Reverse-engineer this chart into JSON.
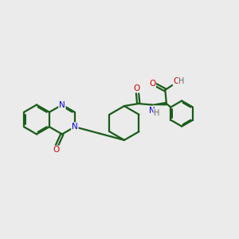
{
  "bg_color": "#ebebeb",
  "bond_color": "#1a5c1a",
  "n_color": "#0000dd",
  "o_color": "#cc0000",
  "h_color": "#666666",
  "line_width": 1.6,
  "figsize": [
    3.0,
    3.0
  ],
  "dpi": 100,
  "xlim": [
    0,
    10
  ],
  "ylim": [
    1.5,
    8.5
  ]
}
